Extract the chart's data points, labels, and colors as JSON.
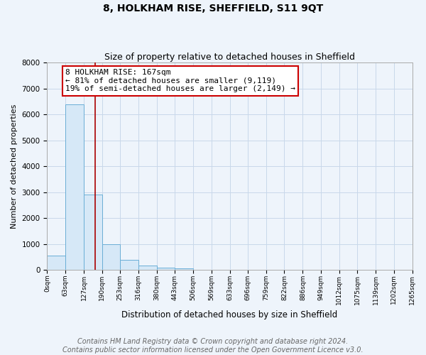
{
  "title": "8, HOLKHAM RISE, SHEFFIELD, S11 9QT",
  "subtitle": "Size of property relative to detached houses in Sheffield",
  "xlabel": "Distribution of detached houses by size in Sheffield",
  "ylabel": "Number of detached properties",
  "bin_edges": [
    0,
    63,
    127,
    190,
    253,
    316,
    380,
    443,
    506,
    569,
    633,
    696,
    759,
    822,
    886,
    949,
    1012,
    1075,
    1139,
    1202,
    1265
  ],
  "bar_heights": [
    560,
    6400,
    2900,
    1000,
    380,
    175,
    100,
    60,
    10,
    0,
    0,
    0,
    0,
    0,
    0,
    0,
    0,
    0,
    0,
    0
  ],
  "bar_color": "#d6e8f7",
  "bar_edgecolor": "#6aaed6",
  "grid_color": "#c8d8ea",
  "bg_color": "#eef4fb",
  "vline_x": 167,
  "vline_color": "#aa0000",
  "annotation_line1": "8 HOLKHAM RISE: 167sqm",
  "annotation_line2": "← 81% of detached houses are smaller (9,119)",
  "annotation_line3": "19% of semi-detached houses are larger (2,149) →",
  "annotation_box_color": "#cc0000",
  "annotation_box_facecolor": "white",
  "ylim": [
    0,
    8000
  ],
  "yticks": [
    0,
    1000,
    2000,
    3000,
    4000,
    5000,
    6000,
    7000,
    8000
  ],
  "footer_text": "Contains HM Land Registry data © Crown copyright and database right 2024.\nContains public sector information licensed under the Open Government Licence v3.0.",
  "title_fontsize": 10,
  "subtitle_fontsize": 9,
  "annotation_fontsize": 8,
  "footer_fontsize": 7,
  "ylabel_fontsize": 8,
  "xlabel_fontsize": 8.5
}
